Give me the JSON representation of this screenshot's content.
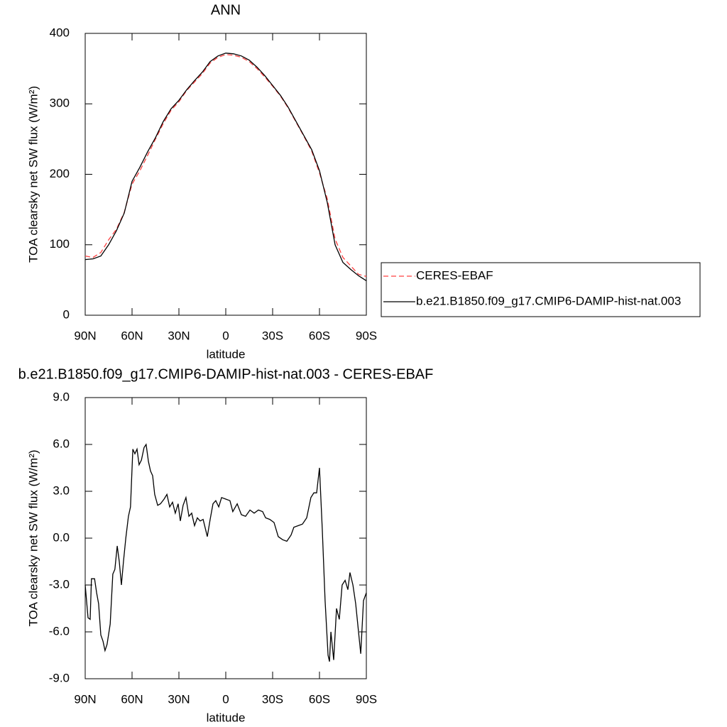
{
  "chart_data": [
    {
      "type": "line",
      "title": "ANN",
      "xlabel": "latitude",
      "ylabel": "TOA clearsky net SW flux (W/m²)",
      "x": [
        90,
        85,
        80,
        75,
        70,
        65,
        60,
        55,
        50,
        45,
        40,
        35,
        30,
        25,
        20,
        15,
        10,
        5,
        0,
        -5,
        -10,
        -15,
        -20,
        -25,
        -30,
        -35,
        -40,
        -45,
        -50,
        -55,
        -60,
        -65,
        -70,
        -75,
        -80,
        -85,
        -90
      ],
      "series": [
        {
          "name": "CERES-EBAF",
          "color": "#ff4040",
          "linestyle": "dashed",
          "values": [
            84,
            82,
            89,
            107,
            122,
            146,
            186,
            205,
            227,
            250,
            272,
            291,
            303,
            319,
            331,
            343,
            358,
            366,
            370,
            369,
            366,
            360,
            350,
            338,
            325,
            311,
            294,
            274,
            254,
            233,
            202,
            165,
            108,
            82,
            70,
            58,
            55
          ]
        },
        {
          "name": "b.e21.B1850.f09_g17.CMIP6-DAMIP-hist-nat.003",
          "color": "#000000",
          "linestyle": "solid",
          "values": [
            79,
            80,
            84,
            100,
            120,
            145,
            190,
            210,
            232,
            252,
            275,
            293,
            305,
            320,
            333,
            345,
            360,
            368,
            372,
            371,
            368,
            362,
            352,
            340,
            326,
            312,
            295,
            275,
            255,
            235,
            205,
            160,
            100,
            75,
            65,
            56,
            49
          ]
        }
      ],
      "xlim": [
        90,
        -90
      ],
      "xticks": [
        {
          "value": 90,
          "label": "90N"
        },
        {
          "value": 60,
          "label": "60N"
        },
        {
          "value": 30,
          "label": "30N"
        },
        0,
        {
          "value": -30,
          "label": "30S"
        },
        {
          "value": -60,
          "label": "60S"
        },
        {
          "value": -90,
          "label": "90S"
        }
      ],
      "ylim": [
        0,
        400
      ],
      "yticks": [
        0,
        100,
        200,
        300,
        400
      ],
      "legend": "right"
    },
    {
      "type": "line",
      "title": "b.e21.B1850.f09_g17.CMIP6-DAMIP-hist-nat.003 - CERES-EBAF",
      "xlabel": "latitude",
      "ylabel": "TOA clearsky net SW flux (W/m²)",
      "x": [
        90,
        88.2,
        86.8,
        86,
        84,
        82.7,
        81.4,
        80,
        78.6,
        77.3,
        76,
        74,
        72.3,
        71,
        69.5,
        68.2,
        66.8,
        65.5,
        64,
        62.3,
        61,
        59.5,
        58.2,
        56.8,
        55.5,
        54,
        52.3,
        51,
        49.5,
        48.2,
        46.8,
        45.5,
        43.6,
        41.8,
        39.5,
        37.7,
        35.9,
        34.1,
        32.3,
        30.5,
        29.1,
        27.3,
        25.5,
        23.6,
        21.8,
        20,
        18.2,
        16.4,
        14.5,
        11.8,
        10,
        8.2,
        6.4,
        4.5,
        2.7,
        0,
        -2.7,
        -4.5,
        -7.3,
        -10,
        -12.7,
        -15.5,
        -18.2,
        -20.9,
        -23.6,
        -25.5,
        -28.2,
        -30.9,
        -33.6,
        -36.4,
        -39.1,
        -41.8,
        -43.6,
        -46.4,
        -49.1,
        -51.8,
        -54.5,
        -56.4,
        -58.2,
        -60,
        -61.8,
        -63.6,
        -65.5,
        -66.4,
        -67.3,
        -69.1,
        -70.9,
        -72.7,
        -74.5,
        -76.4,
        -78.2,
        -79.5,
        -81.4,
        -83.2,
        -85,
        -86.4,
        -88.2,
        -90
      ],
      "series": [
        {
          "name": "b.e21.B1850.f09_g17.CMIP6-DAMIP-hist-nat.003 - CERES-EBAF",
          "color": "#000000",
          "linestyle": "solid",
          "values": [
            -3,
            -5.1,
            -5.2,
            -2.6,
            -2.6,
            -3.5,
            -4.2,
            -6.2,
            -6.6,
            -7.2,
            -6.8,
            -5.5,
            -2.3,
            -2,
            -0.5,
            -1.5,
            -3,
            -1.5,
            0,
            1.4,
            2,
            5.7,
            5.4,
            5.7,
            4.7,
            5,
            5.8,
            6,
            4.9,
            4.3,
            4,
            2.8,
            2.1,
            2.2,
            2.5,
            2.8,
            2,
            2.3,
            1.6,
            2.2,
            1.1,
            2.1,
            2.6,
            1.4,
            1.6,
            0.8,
            1.3,
            1.1,
            1.2,
            0.1,
            1.2,
            2.2,
            2.4,
            2,
            2.6,
            2.5,
            2.4,
            1.7,
            2.2,
            1.5,
            1.4,
            1.8,
            1.6,
            1.8,
            1.7,
            1.3,
            1.2,
            1,
            0.1,
            -0.1,
            -0.2,
            0.2,
            0.7,
            0.8,
            0.9,
            1.3,
            2.6,
            2.9,
            2.9,
            4.5,
            0.5,
            -4,
            -7.5,
            -7.9,
            -6,
            -7.8,
            -4.5,
            -5.2,
            -3,
            -2.7,
            -3.3,
            -2.2,
            -3,
            -4.2,
            -6,
            -7.4,
            -4,
            -3.5
          ]
        }
      ],
      "xlim": [
        90,
        -90
      ],
      "xticks": [
        {
          "value": 90,
          "label": "90N"
        },
        {
          "value": 60,
          "label": "60N"
        },
        {
          "value": 30,
          "label": "30N"
        },
        0,
        {
          "value": -30,
          "label": "30S"
        },
        {
          "value": -60,
          "label": "60S"
        },
        {
          "value": -90,
          "label": "90S"
        }
      ],
      "ylim": [
        -9,
        9
      ],
      "yticks": [
        {
          "value": -9,
          "label": "-9.0"
        },
        {
          "value": -6,
          "label": "-6.0"
        },
        {
          "value": -3,
          "label": "-3.0"
        },
        {
          "value": 0,
          "label": "0.0"
        },
        {
          "value": 3,
          "label": "3.0"
        },
        {
          "value": 6,
          "label": "6.0"
        },
        {
          "value": 9,
          "label": "9.0"
        }
      ]
    }
  ]
}
